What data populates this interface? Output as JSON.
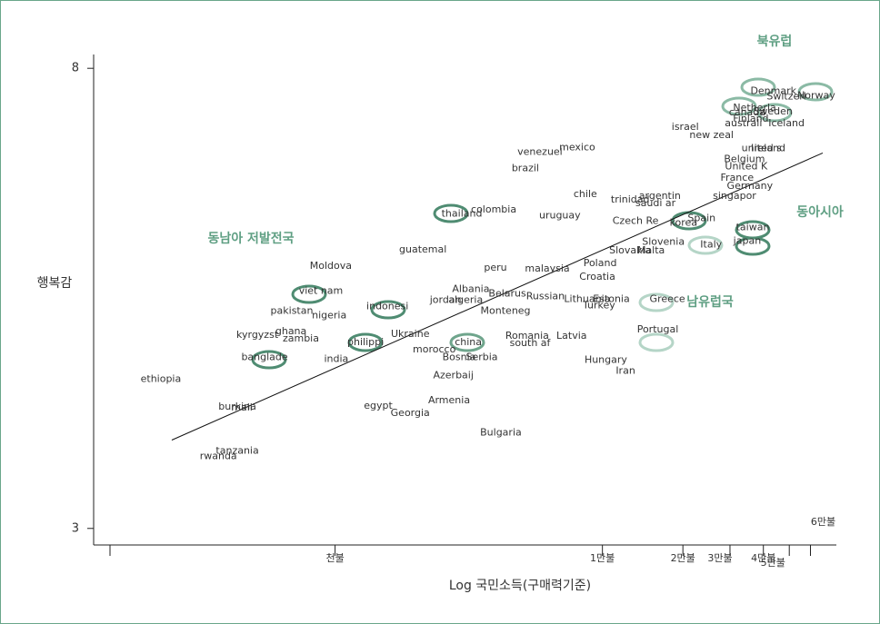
{
  "chart_data": {
    "type": "scatter",
    "log_x": true,
    "y_label": "행복감",
    "x_label": "Log 국민소득(구매력기준)",
    "xlim": [
      125,
      75000
    ],
    "ylim": [
      2.82,
      8.15
    ],
    "xticks": [
      {
        "value": 1000,
        "label": "천불"
      },
      {
        "value": 10000,
        "label": "1만불"
      },
      {
        "value": 20000,
        "label": "2만불"
      },
      {
        "value": 30000,
        "label": "3만불"
      },
      {
        "value": 40000,
        "label": "4만불"
      },
      {
        "value": 50000,
        "label": "5만불"
      },
      {
        "value": 60000,
        "label": "6만불"
      }
    ],
    "yticks": [
      3,
      8
    ],
    "annotations": [
      "북유럽",
      "동아시아",
      "동남아  저발전국",
      "남유럽국"
    ],
    "labels": [
      "Denmark",
      "Switzerl",
      "Norway",
      "Netherla",
      "canada",
      "Sweden",
      "Finland",
      "australi",
      "Iceland",
      "israel",
      "new zeal",
      "united s",
      "Ireland",
      "Belgium",
      "United K",
      "France",
      "Germany",
      "singapor",
      "argentin",
      "trinidad",
      "saudi ar",
      "Czech Re",
      "Spain",
      "korea",
      "taiwan",
      "Slovenia",
      "japan",
      "Slovakia",
      "Malta",
      "Italy",
      "Poland",
      "Croatia",
      "Greece",
      "Lithuania",
      "Estonia",
      "Turkey",
      "Portugal",
      "Latvia",
      "Hungary",
      "Iran",
      "Romania",
      "south af",
      "Bulgaria",
      "venezuel",
      "mexico",
      "brazil",
      "chile",
      "uruguay",
      "thailand",
      "colombia",
      "guatemal",
      "peru",
      "malaysia",
      "Albania",
      "Belarus",
      "Russian",
      "jordan",
      "algeria",
      "Monteneg",
      "Ukraine",
      "china",
      "morocco",
      "Bosnia",
      "Serbia",
      "Azerbaij",
      "Armenia",
      "egypt",
      "Georgia",
      "indonesi",
      "philippi",
      "india",
      "viet nam",
      "Moldova",
      "pakistan",
      "nigeria",
      "ghana",
      "kyrgyzst",
      "zambia",
      "banglade",
      "ethiopia",
      "burkina",
      "mali",
      "tanzania",
      "rwanda"
    ],
    "x": [
      43600,
      48800,
      63100,
      37100,
      34800,
      43400,
      35900,
      33700,
      48800,
      20400,
      25600,
      39400,
      41700,
      34000,
      34500,
      31900,
      35600,
      31200,
      16400,
      12700,
      15800,
      13300,
      23500,
      20100,
      36500,
      16900,
      34800,
      12700,
      15200,
      25500,
      9800,
      9570,
      17500,
      8770,
      10800,
      9710,
      16100,
      7670,
      10300,
      12200,
      5230,
      5360,
      4170,
      5840,
      8050,
      5150,
      8630,
      6930,
      2980,
      3920,
      2130,
      3980,
      6220,
      3220,
      4410,
      6120,
      2590,
      3080,
      4340,
      1910,
      3150,
      2350,
      2910,
      3540,
      2770,
      2670,
      1450,
      1910,
      1570,
      1300,
      1010,
      885,
      964,
      689,
      951,
      684,
      512,
      745,
      545,
      223,
      431,
      448,
      431,
      366
    ],
    "values": [
      7.75,
      7.69,
      7.7,
      7.57,
      7.52,
      7.53,
      7.45,
      7.4,
      7.4,
      7.36,
      7.27,
      7.13,
      7.13,
      7.01,
      6.93,
      6.81,
      6.72,
      6.61,
      6.61,
      6.57,
      6.53,
      6.34,
      6.37,
      6.32,
      6.27,
      6.11,
      6.12,
      6.02,
      6.02,
      6.08,
      5.88,
      5.73,
      5.49,
      5.49,
      5.49,
      5.42,
      5.16,
      5.09,
      4.83,
      4.71,
      5.09,
      5.01,
      4.04,
      7.09,
      7.14,
      6.91,
      6.63,
      6.4,
      6.42,
      6.46,
      6.03,
      5.83,
      5.82,
      5.6,
      5.55,
      5.52,
      5.48,
      5.48,
      5.36,
      5.11,
      5.02,
      4.94,
      4.86,
      4.86,
      4.66,
      4.39,
      4.33,
      4.25,
      5.41,
      5.02,
      4.84,
      5.58,
      5.85,
      5.36,
      5.31,
      5.14,
      5.1,
      5.06,
      4.86,
      4.62,
      4.32,
      4.31,
      3.84,
      3.78
    ],
    "trend": {
      "x": [
        245,
        66700
      ],
      "values": [
        3.96,
        7.08
      ]
    }
  }
}
